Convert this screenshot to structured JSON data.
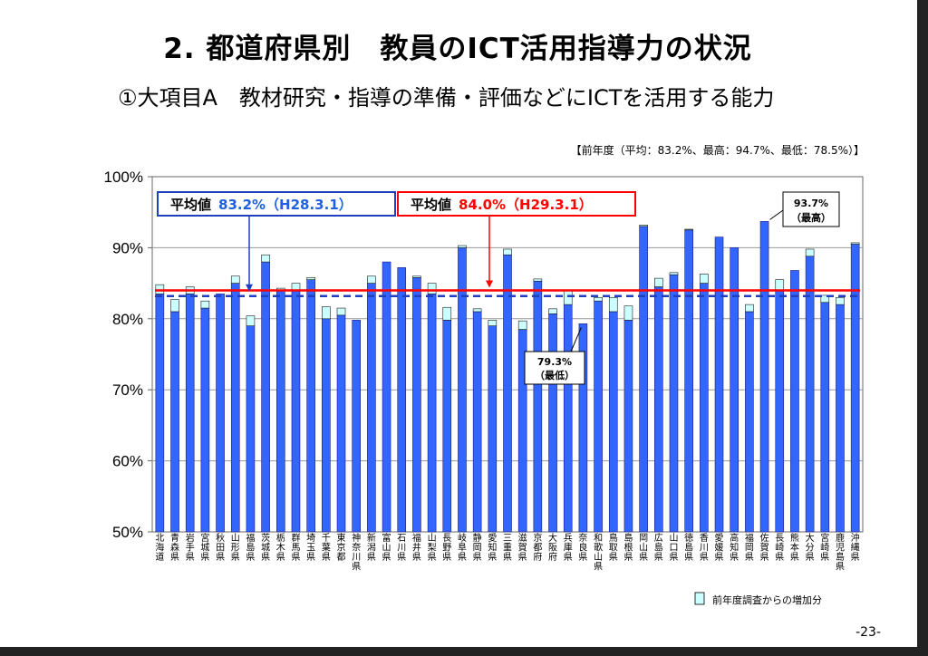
{
  "title": "2. 都道府県別　教員のICT活用指導力の状況",
  "subtitle": "①大項目A　教材研究・指導の準備・評価などにICTを活用する能力",
  "prev_note": "【前年度（平均：83.2%、最高：94.7%、最低：78.5%）】",
  "page_number": "-23-",
  "colors": {
    "bar": "#3366ff",
    "bar_stroke": "#1a1a80",
    "increase": "#ccffff",
    "avg_line": "#ff0000",
    "prev_avg_line": "#1f3fbf"
  },
  "chart_data": {
    "type": "bar",
    "categories": [
      "北海道",
      "青森県",
      "岩手県",
      "宮城県",
      "秋田県",
      "山形県",
      "福島県",
      "茨城県",
      "栃木県",
      "群馬県",
      "埼玉県",
      "千葉県",
      "東京都",
      "神奈川県",
      "新潟県",
      "富山県",
      "石川県",
      "福井県",
      "山梨県",
      "長野県",
      "岐阜県",
      "静岡県",
      "愛知県",
      "三重県",
      "滋賀県",
      "京都府",
      "大阪府",
      "兵庫県",
      "奈良県",
      "和歌山県",
      "鳥取県",
      "島根県",
      "岡山県",
      "広島県",
      "山口県",
      "徳島県",
      "香川県",
      "愛媛県",
      "高知県",
      "福岡県",
      "佐賀県",
      "長崎県",
      "熊本県",
      "大分県",
      "宮崎県",
      "鹿児島県",
      "沖縄県"
    ],
    "series": [
      {
        "name": "",
        "values": [
          83.5,
          81.0,
          83.5,
          81.5,
          83.5,
          85.0,
          79.0,
          88.0,
          84.0,
          84.0,
          85.5,
          80.0,
          80.5,
          79.8,
          85.0,
          88.0,
          87.2,
          85.8,
          83.5,
          79.8,
          90.0,
          81.0,
          79.0,
          89.0,
          78.5,
          85.3,
          80.7,
          82.0,
          79.3,
          82.5,
          81.0,
          79.8,
          93.0,
          84.5,
          86.2,
          92.5,
          85.0,
          91.5,
          90.0,
          81.0,
          93.7,
          84.0,
          86.8,
          88.8,
          82.3,
          82.0,
          90.5
        ]
      },
      {
        "name": "前年度調査からの増加分",
        "values": [
          1.3,
          1.7,
          1.0,
          1.0,
          0.0,
          1.0,
          1.4,
          1.0,
          0.3,
          1.0,
          0.3,
          1.7,
          1.0,
          0.0,
          1.0,
          0.0,
          0.0,
          0.2,
          1.5,
          1.8,
          0.3,
          0.4,
          0.8,
          0.8,
          1.2,
          0.3,
          0.7,
          2.0,
          0.0,
          0.5,
          2.0,
          2.0,
          0.2,
          1.2,
          0.3,
          0.1,
          1.3,
          0.0,
          0.0,
          1.0,
          0.0,
          1.5,
          0.0,
          1.0,
          1.0,
          1.0,
          0.2
        ]
      }
    ],
    "ylim": [
      50,
      100
    ],
    "yticks": [
      "50%",
      "60%",
      "70%",
      "80%",
      "90%",
      "100%"
    ],
    "avg_prev": {
      "value": 83.2,
      "label_prefix": "平均値",
      "label_value": "83.2%（H28.3.1）"
    },
    "avg_curr": {
      "value": 84.0,
      "label_prefix": "平均値",
      "label_value": "84.0%（H29.3.1）"
    },
    "max_annotation": {
      "index": 40,
      "value_text": "93.7%",
      "note": "（最高）"
    },
    "min_annotation": {
      "index": 28,
      "value_text": "79.3%",
      "note": "（最低）"
    },
    "legend": {
      "label": "前年度調査からの増加分"
    }
  }
}
